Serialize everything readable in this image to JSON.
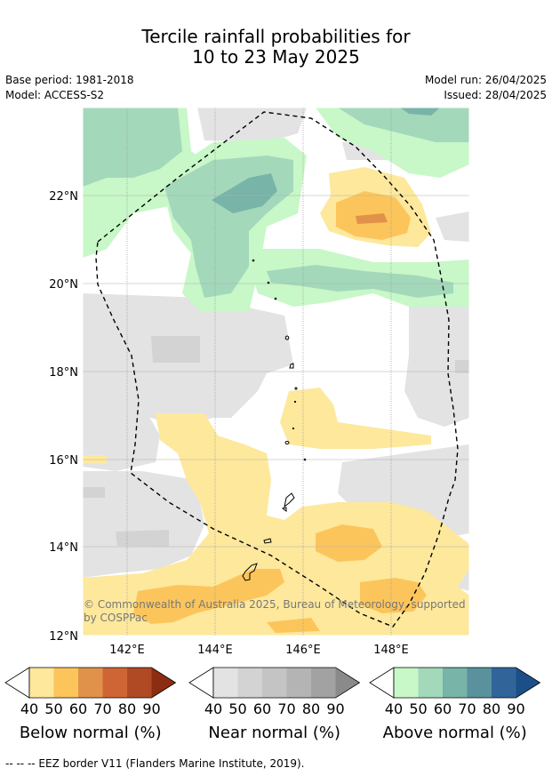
{
  "title_line1": "Tercile rainfall probabilities for",
  "title_line2": "10 to 23 May 2025",
  "base_period": "Base period: 1981-2018",
  "model": "Model: ACCESS-S2",
  "model_run": "Model run: 26/04/2025",
  "issued": "Issued: 28/04/2025",
  "y_ticks": [
    "22°N",
    "20°N",
    "18°N",
    "16°N",
    "14°N",
    "12°N"
  ],
  "x_ticks": [
    "142°E",
    "144°E",
    "146°E",
    "148°E"
  ],
  "copyright_line1": "© Commonwealth of Australia 2025, Bureau of Meteorology, supported",
  "copyright_line2": "by COSPPac",
  "colorbars": [
    {
      "label": "Below normal (%)",
      "ticks": [
        "40",
        "50",
        "60",
        "70",
        "80",
        "90"
      ],
      "colors": [
        "#fde89c",
        "#fcc55c",
        "#e0924a",
        "#cf6535",
        "#b04a25",
        "#8c2d12"
      ]
    },
    {
      "label": "Near normal (%)",
      "ticks": [
        "40",
        "50",
        "60",
        "70",
        "80",
        "90"
      ],
      "colors": [
        "#e3e3e3",
        "#d3d3d3",
        "#c4c4c4",
        "#b4b4b4",
        "#a2a2a2",
        "#8a8a8a"
      ]
    },
    {
      "label": "Above normal (%)",
      "ticks": [
        "40",
        "50",
        "60",
        "70",
        "80",
        "90"
      ],
      "colors": [
        "#c8f7c8",
        "#a3d8bb",
        "#78b4a7",
        "#5a919d",
        "#31659a",
        "#1c4f88"
      ]
    }
  ],
  "footer": "--  --  -- EEZ border V11 (Flanders Marine Institute, 2019)."
}
